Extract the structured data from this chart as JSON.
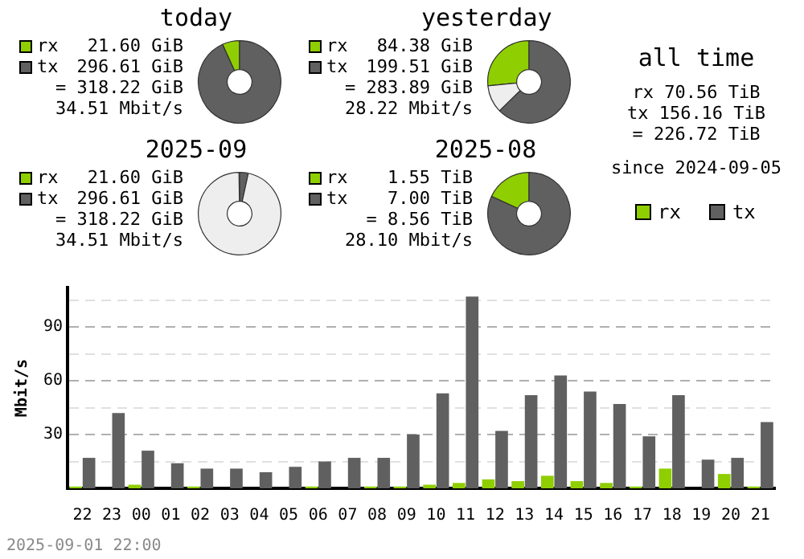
{
  "chart_data": [
    {
      "type": "donut",
      "title": "today",
      "categories": [
        "rx",
        "tx",
        null
      ],
      "values": [
        21.6,
        296.61,
        0
      ],
      "colors": [
        "#8fce00",
        "#606060",
        "#eeeeee"
      ],
      "value_labels": [
        "21.60 GiB",
        "296.61 GiB",
        null
      ],
      "annotations": [
        "= 318.22 GiB",
        "34.51 Mbit/s"
      ],
      "legend": "left"
    },
    {
      "type": "donut",
      "title": "yesterday",
      "categories": [
        "rx",
        "tx",
        null
      ],
      "values": [
        84.38,
        199.51,
        34.33
      ],
      "colors": [
        "#8fce00",
        "#606060",
        "#eeeeee"
      ],
      "value_labels": [
        "84.38 GiB",
        "199.51 GiB",
        null
      ],
      "annotations": [
        "= 283.89 GiB",
        "28.22 Mbit/s"
      ],
      "legend": "left"
    },
    {
      "type": "donut",
      "title": "2025-09",
      "categories": [
        "rx",
        "tx",
        null
      ],
      "values": [
        21.6,
        296.61,
        8447.22
      ],
      "colors": [
        "#8fce00",
        "#606060",
        "#eeeeee"
      ],
      "value_labels": [
        "21.60 GiB",
        "296.61 GiB",
        null
      ],
      "annotations": [
        "= 318.22 GiB",
        "34.51 Mbit/s"
      ],
      "legend": "left"
    },
    {
      "type": "donut",
      "title": "2025-08",
      "categories": [
        "rx",
        "tx",
        null
      ],
      "values": [
        1.55,
        7.0,
        0
      ],
      "colors": [
        "#8fce00",
        "#606060",
        "#eeeeee"
      ],
      "value_labels": [
        "1.55 TiB",
        "7.00 TiB",
        null
      ],
      "annotations": [
        "= 8.56 TiB",
        "28.10 Mbit/s"
      ],
      "legend": "left"
    },
    {
      "type": "other",
      "title": "all time",
      "annotations": [
        "rx 70.56 TiB",
        "tx 156.16 TiB",
        "= 226.72 TiB",
        "since 2024-09-05"
      ]
    },
    {
      "type": "bar",
      "ylabel": "Mbit/s",
      "categories": [
        "22",
        "23",
        "00",
        "01",
        "02",
        "03",
        "04",
        "05",
        "06",
        "07",
        "08",
        "09",
        "10",
        "11",
        "12",
        "13",
        "14",
        "15",
        "16",
        "17",
        "18",
        "19",
        "20",
        "21"
      ],
      "series": [
        {
          "name": "rx",
          "color": "#8fce00",
          "values": [
            1,
            0,
            2,
            0,
            1,
            0,
            0,
            0,
            1,
            0,
            1,
            1,
            2,
            3,
            5,
            4,
            7,
            4,
            3,
            1,
            11,
            0,
            8,
            1
          ]
        },
        {
          "name": "tx",
          "color": "#606060",
          "values": [
            17,
            42,
            21,
            14,
            11,
            11,
            9,
            12,
            15,
            17,
            17,
            30,
            53,
            107,
            32,
            52,
            63,
            54,
            47,
            29,
            52,
            16,
            17,
            37
          ]
        }
      ],
      "ylim": [
        0,
        112
      ],
      "yticks": [
        {
          "value": 15,
          "label": null
        },
        30,
        {
          "value": 45,
          "label": null
        },
        60,
        {
          "value": 75,
          "label": null
        },
        90,
        {
          "value": 105,
          "label": null
        }
      ],
      "grid": "y",
      "legend": "top right",
      "annotations": [
        "2025-09-01 22:00"
      ]
    }
  ]
}
